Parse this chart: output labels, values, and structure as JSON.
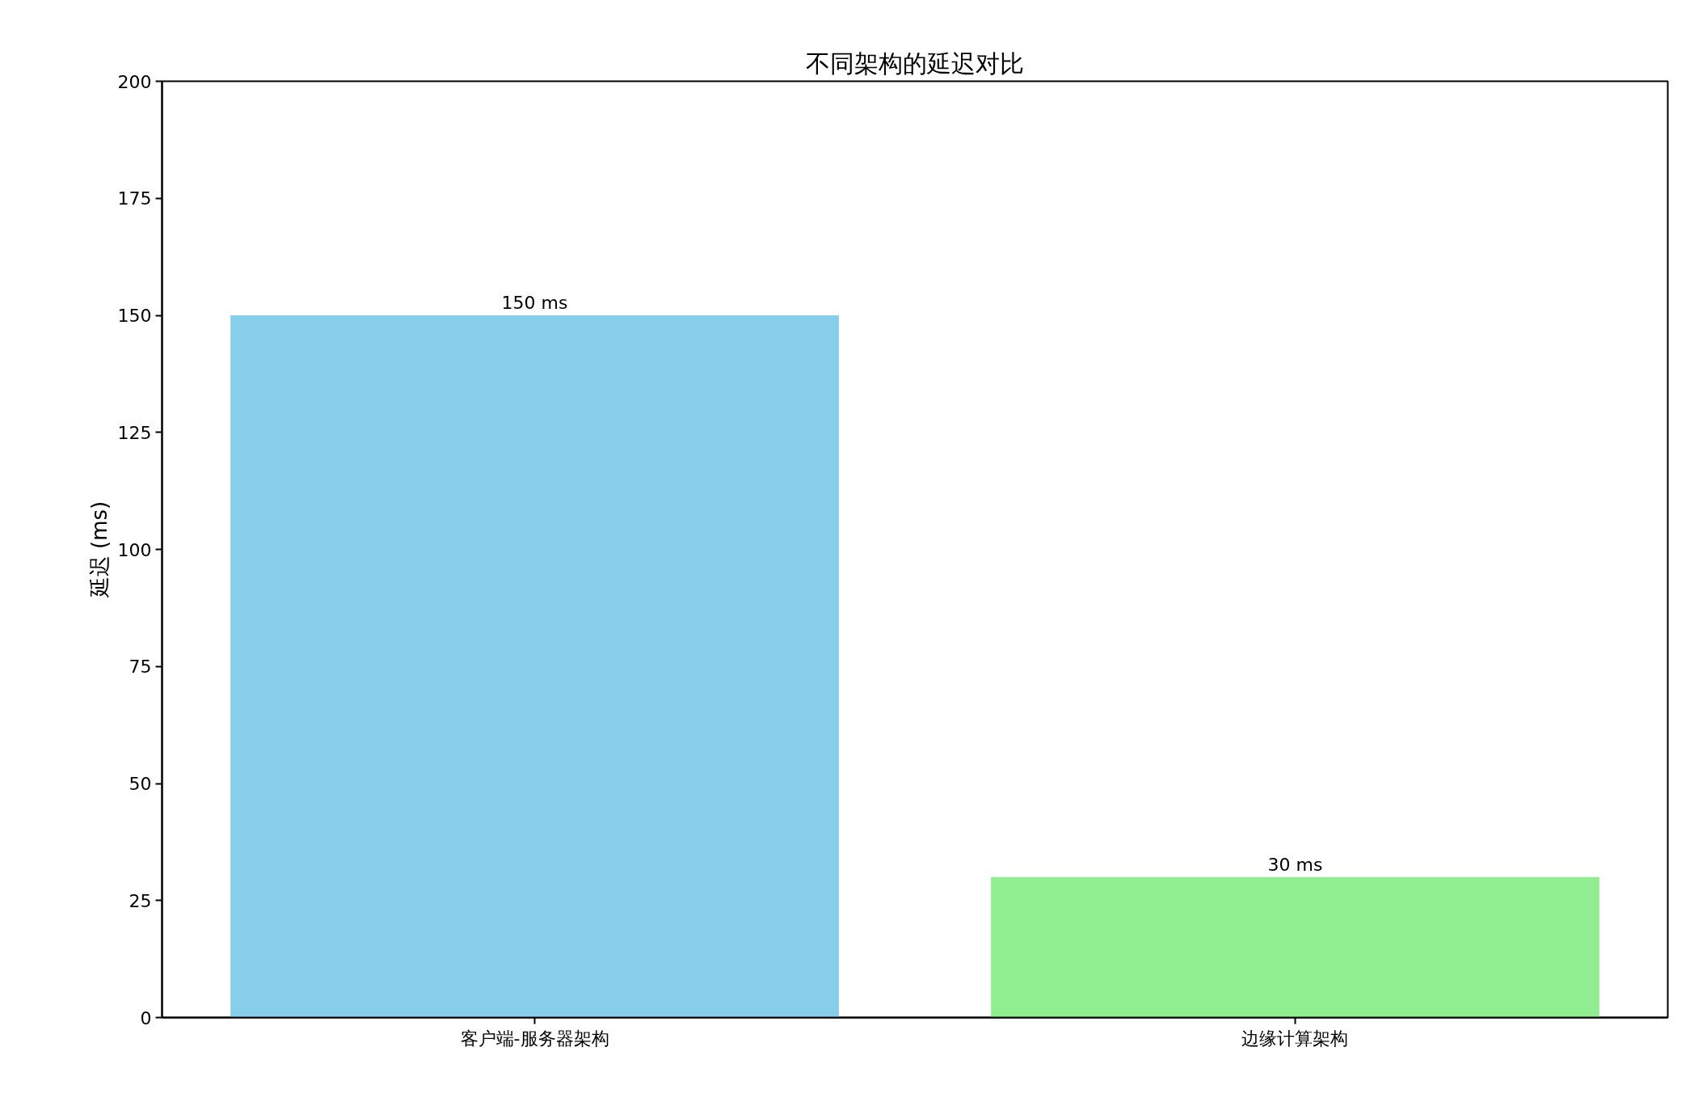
{
  "chart_data": {
    "type": "bar",
    "title": "不同架构的延迟对比",
    "ylabel": "延迟 (ms)",
    "categories": [
      "客户端-服务器架构",
      "边缘计算架构"
    ],
    "values": [
      150,
      30
    ],
    "colors": [
      "#87ceeb",
      "#90ee90"
    ],
    "value_labels": [
      "150 ms",
      "30 ms"
    ],
    "ylim": [
      0,
      200
    ],
    "yticks": [
      0,
      25,
      50,
      75,
      100,
      125,
      150,
      175,
      200
    ],
    "grid": false
  }
}
